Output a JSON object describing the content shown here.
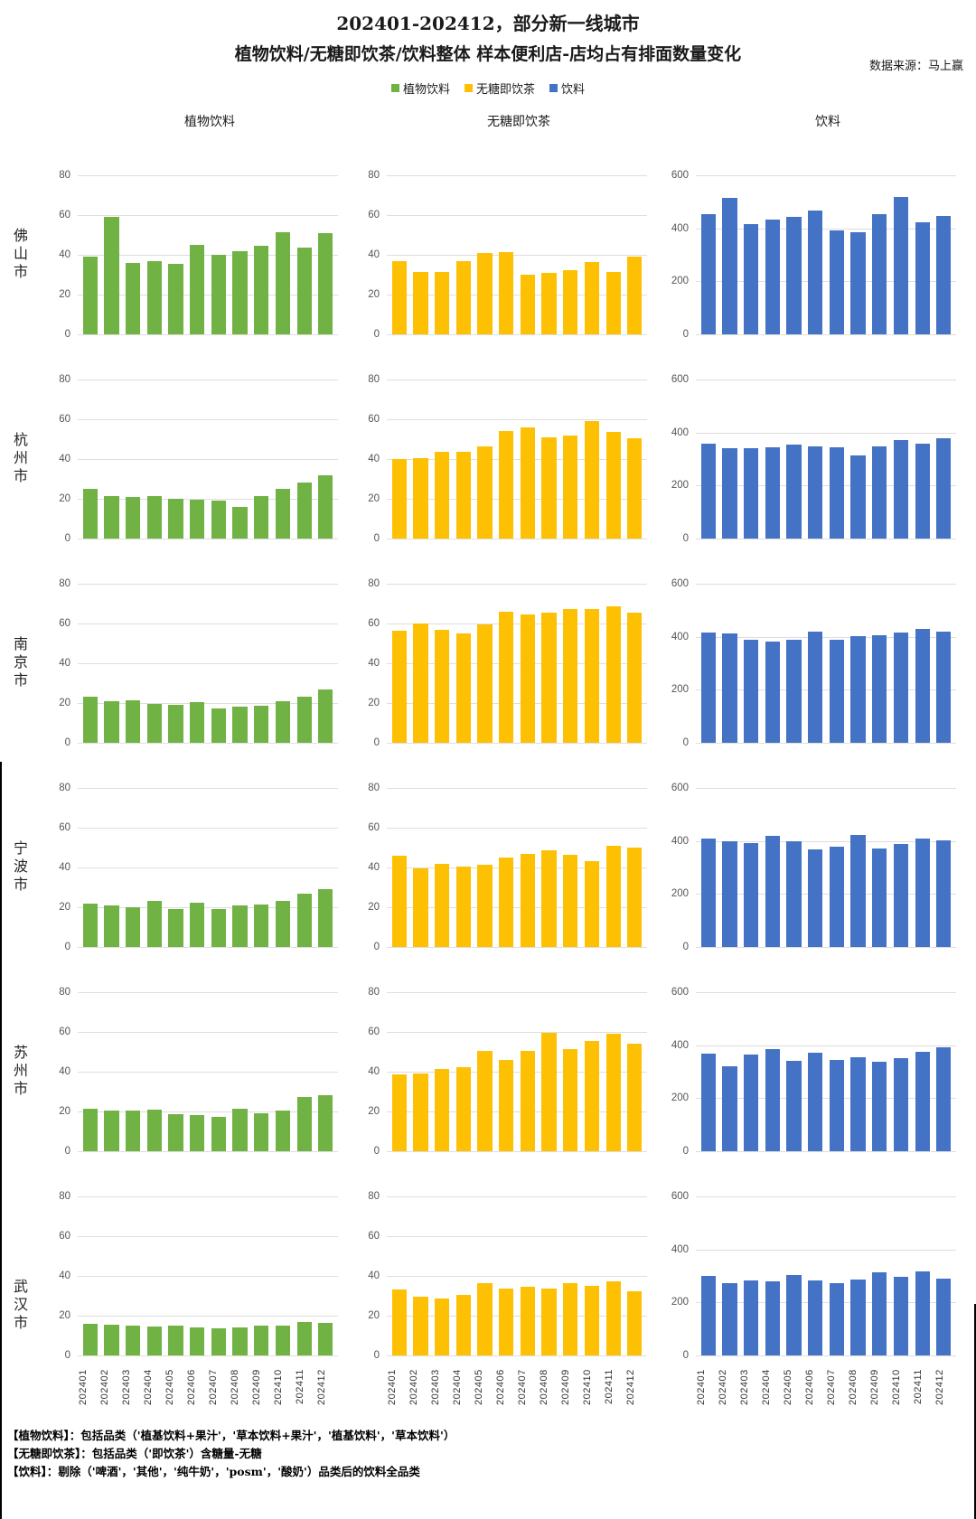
{
  "header": {
    "title_line1": "202401-202412，部分新一线城市",
    "title_line2": "植物饮料/无糖即饮茶/饮料整体 样本便利店-店均占有排面数量变化",
    "source": "数据来源：马上赢"
  },
  "legend": {
    "items": [
      {
        "label": "植物饮料",
        "color": "#70B244"
      },
      {
        "label": "无糖即饮茶",
        "color": "#FEC003"
      },
      {
        "label": "饮料",
        "color": "#4472C4"
      }
    ]
  },
  "chart_data": {
    "type": "bar",
    "grid": true,
    "legend_position": "top",
    "categories": [
      "202401",
      "202402",
      "202403",
      "202404",
      "202405",
      "202406",
      "202407",
      "202408",
      "202409",
      "202410",
      "202411",
      "202412"
    ],
    "columns": [
      {
        "title": "植物饮料",
        "color": "#70B244",
        "ymax": 80,
        "ticks": [
          80,
          60,
          40,
          20,
          0
        ]
      },
      {
        "title": "无糖即饮茶",
        "color": "#FEC003",
        "ymax": 80,
        "ticks": [
          80,
          60,
          40,
          20,
          0
        ]
      },
      {
        "title": "饮料",
        "color": "#4472C4",
        "ymax": 600,
        "ticks": [
          600,
          400,
          200,
          0
        ]
      }
    ],
    "rows": [
      {
        "city": "佛山市",
        "series": [
          {
            "name": "植物饮料",
            "values": [
              39,
              59,
              36,
              37,
              35.5,
              45,
              40,
              42,
              44.5,
              51.5,
              43.5,
              51
            ]
          },
          {
            "name": "无糖即饮茶",
            "values": [
              37,
              31.5,
              31.5,
              37,
              41,
              41.5,
              30,
              31,
              32.5,
              36.5,
              31.5,
              39
            ]
          },
          {
            "name": "饮料",
            "values": [
              452,
              515,
              415,
              432,
              443,
              468,
              392,
              385,
              455,
              518,
              423,
              448
            ]
          }
        ]
      },
      {
        "city": "杭州市",
        "series": [
          {
            "name": "植物饮料",
            "values": [
              25,
              21.5,
              21,
              21.5,
              20,
              19.5,
              19,
              16,
              21.5,
              25,
              28,
              32
            ]
          },
          {
            "name": "无糖即饮茶",
            "values": [
              40,
              40.5,
              43.5,
              43.5,
              46.5,
              54,
              56,
              51,
              52,
              59,
              53.5,
              50.5
            ]
          },
          {
            "name": "饮料",
            "values": [
              357,
              340,
              342,
              344,
              356,
              347,
              344,
              313,
              347,
              373,
              358,
              377
            ]
          }
        ]
      },
      {
        "city": "南京市",
        "series": [
          {
            "name": "植物饮料",
            "values": [
              23,
              21,
              21.5,
              19.5,
              19,
              20.5,
              17.5,
              18,
              18.5,
              21,
              23,
              27
            ]
          },
          {
            "name": "无糖即饮茶",
            "values": [
              56.5,
              60,
              57,
              55,
              59.5,
              66,
              64.5,
              65.5,
              67.5,
              67.5,
              68.5,
              65.5
            ]
          },
          {
            "name": "饮料",
            "values": [
              415,
              413,
              390,
              383,
              388,
              420,
              390,
              404,
              406,
              415,
              428,
              421
            ]
          }
        ]
      },
      {
        "city": "宁波市",
        "series": [
          {
            "name": "植物饮料",
            "values": [
              22,
              21,
              20,
              23,
              19,
              22.5,
              19,
              21,
              21.5,
              23,
              27,
              29
            ]
          },
          {
            "name": "无糖即饮茶",
            "values": [
              46,
              39.5,
              42,
              40.5,
              41.5,
              45,
              47,
              48.5,
              46.5,
              43,
              51,
              50
            ]
          },
          {
            "name": "饮料",
            "values": [
              408,
              398,
              392,
              420,
              400,
              368,
              378,
              422,
              370,
              390,
              408,
              404
            ]
          }
        ]
      },
      {
        "city": "苏州市",
        "series": [
          {
            "name": "植物饮料",
            "values": [
              21.5,
              20.5,
              20.5,
              21,
              18.5,
              18,
              17.5,
              21.5,
              19,
              20.5,
              27.5,
              28
            ]
          },
          {
            "name": "无糖即饮茶",
            "values": [
              38.5,
              39,
              41.5,
              42.5,
              50.5,
              46,
              50.5,
              59.5,
              51.5,
              55.5,
              59,
              54
            ]
          },
          {
            "name": "饮料",
            "values": [
              368,
              322,
              365,
              385,
              340,
              372,
              343,
              355,
              338,
              350,
              375,
              393
            ]
          }
        ]
      },
      {
        "city": "武汉市",
        "series": [
          {
            "name": "植物饮料",
            "values": [
              16,
              15.5,
              15,
              14.5,
              15,
              14,
              13.5,
              14,
              15,
              15,
              17,
              16.5
            ]
          },
          {
            "name": "无糖即饮茶",
            "values": [
              33,
              29.5,
              28.5,
              30.5,
              36.5,
              33.5,
              34.5,
              33.5,
              36.5,
              35,
              37.5,
              32.5
            ]
          },
          {
            "name": "饮料",
            "values": [
              300,
              272,
              283,
              280,
              305,
              282,
              272,
              285,
              312,
              295,
              318,
              290
            ]
          }
        ]
      }
    ]
  },
  "footnotes": {
    "line1": "【植物饮料】：包括品类（'植基饮料+果汁'，'草本饮料+果汁'，'植基饮料'，'草本饮料'）",
    "line2": "【无糖即饮茶】：包括品类（'即饮茶'）含糖量-无糖",
    "line3": "【饮料】：剔除（'啤酒'，'其他'，'纯牛奶'，'posm'，'酸奶'）品类后的饮料全品类"
  }
}
